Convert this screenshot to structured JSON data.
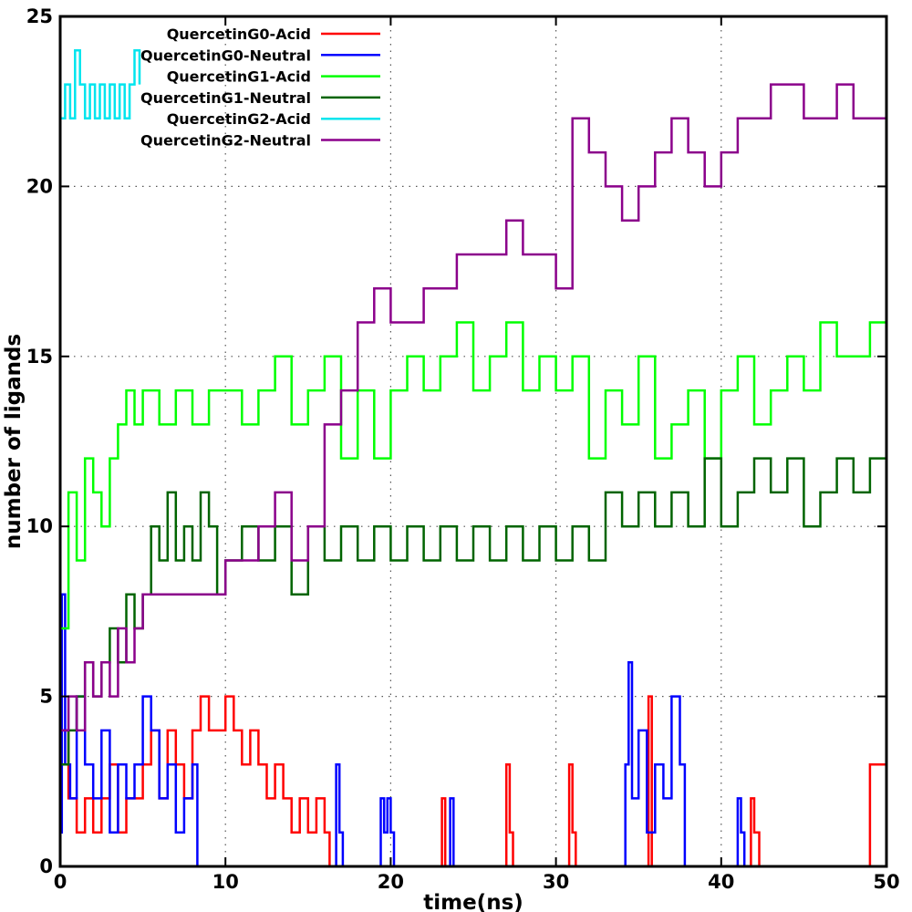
{
  "chart_data": {
    "type": "line",
    "title": "",
    "xlabel": "time(ns)",
    "ylabel": "number of ligands",
    "xlim": [
      0,
      50
    ],
    "ylim": [
      0,
      25
    ],
    "xticks": [
      0,
      10,
      20,
      30,
      40,
      50
    ],
    "yticks": [
      0,
      5,
      10,
      15,
      20,
      25
    ],
    "grid": true,
    "legend_position": "top-left",
    "series": [
      {
        "name": "QuercetinG0-Acid",
        "color": "#ff0000",
        "points": [
          [
            0,
            4
          ],
          [
            0.5,
            2
          ],
          [
            1,
            1
          ],
          [
            1.5,
            2
          ],
          [
            2,
            1
          ],
          [
            2.5,
            2
          ],
          [
            3,
            3
          ],
          [
            3.5,
            1
          ],
          [
            4,
            2
          ],
          [
            4.5,
            2
          ],
          [
            5,
            3
          ],
          [
            5.5,
            4
          ],
          [
            6,
            2
          ],
          [
            6.5,
            4
          ],
          [
            7,
            3
          ],
          [
            7.5,
            2
          ],
          [
            8,
            4
          ],
          [
            8.5,
            5
          ],
          [
            9,
            4
          ],
          [
            9.5,
            4
          ],
          [
            10,
            5
          ],
          [
            10.5,
            4
          ],
          [
            11,
            3
          ],
          [
            11.5,
            4
          ],
          [
            12,
            3
          ],
          [
            12.5,
            2
          ],
          [
            13,
            3
          ],
          [
            13.5,
            2
          ],
          [
            14,
            1
          ],
          [
            14.5,
            2
          ],
          [
            15,
            1
          ],
          [
            15.5,
            2
          ],
          [
            16,
            1
          ],
          [
            16.3,
            0
          ],
          [
            22.9,
            0
          ],
          [
            23.1,
            2
          ],
          [
            23.3,
            0
          ],
          [
            26.8,
            0
          ],
          [
            27,
            3
          ],
          [
            27.2,
            1
          ],
          [
            27.4,
            0
          ],
          [
            30.6,
            0
          ],
          [
            30.8,
            3
          ],
          [
            31,
            1
          ],
          [
            31.2,
            0
          ],
          [
            35.4,
            0
          ],
          [
            35.6,
            5
          ],
          [
            35.8,
            0
          ],
          [
            41.5,
            0
          ],
          [
            41.8,
            2
          ],
          [
            42,
            1
          ],
          [
            42.3,
            0
          ],
          [
            49,
            0
          ],
          [
            49,
            3
          ],
          [
            50,
            3
          ]
        ]
      },
      {
        "name": "QuercetinG0-Neutral",
        "color": "#0000ff",
        "points": [
          [
            0,
            1
          ],
          [
            0.1,
            8
          ],
          [
            0.3,
            3
          ],
          [
            0.6,
            2
          ],
          [
            1,
            5
          ],
          [
            1.5,
            3
          ],
          [
            2,
            2
          ],
          [
            2.5,
            4
          ],
          [
            3,
            1
          ],
          [
            3.5,
            3
          ],
          [
            4,
            2
          ],
          [
            4.5,
            3
          ],
          [
            5,
            5
          ],
          [
            5.5,
            4
          ],
          [
            6,
            2
          ],
          [
            6.5,
            3
          ],
          [
            7,
            1
          ],
          [
            7.5,
            2
          ],
          [
            8,
            3
          ],
          [
            8.3,
            0
          ],
          [
            16.5,
            0
          ],
          [
            16.7,
            3
          ],
          [
            16.9,
            1
          ],
          [
            17.1,
            0
          ],
          [
            19.2,
            0
          ],
          [
            19.4,
            2
          ],
          [
            19.6,
            1
          ],
          [
            19.8,
            2
          ],
          [
            20,
            1
          ],
          [
            20.2,
            0
          ],
          [
            23.4,
            0
          ],
          [
            23.6,
            2
          ],
          [
            23.8,
            0
          ],
          [
            34,
            0
          ],
          [
            34.2,
            3
          ],
          [
            34.4,
            6
          ],
          [
            34.6,
            2
          ],
          [
            35,
            4
          ],
          [
            35.5,
            1
          ],
          [
            36,
            3
          ],
          [
            36.5,
            2
          ],
          [
            37,
            5
          ],
          [
            37.5,
            3
          ],
          [
            37.8,
            0
          ],
          [
            40.8,
            0
          ],
          [
            41,
            2
          ],
          [
            41.2,
            1
          ],
          [
            41.4,
            0
          ],
          [
            50,
            0
          ]
        ]
      },
      {
        "name": "QuercetinG1-Acid",
        "color": "#00ff00",
        "points": [
          [
            0,
            7
          ],
          [
            0.5,
            11
          ],
          [
            1,
            9
          ],
          [
            1.5,
            12
          ],
          [
            2,
            11
          ],
          [
            2.5,
            10
          ],
          [
            3,
            12
          ],
          [
            3.5,
            13
          ],
          [
            4,
            14
          ],
          [
            4.5,
            13
          ],
          [
            5,
            14
          ],
          [
            6,
            13
          ],
          [
            7,
            14
          ],
          [
            8,
            13
          ],
          [
            9,
            14
          ],
          [
            10,
            14
          ],
          [
            11,
            13
          ],
          [
            12,
            14
          ],
          [
            13,
            15
          ],
          [
            14,
            13
          ],
          [
            15,
            14
          ],
          [
            16,
            15
          ],
          [
            17,
            12
          ],
          [
            18,
            14
          ],
          [
            19,
            12
          ],
          [
            20,
            14
          ],
          [
            21,
            15
          ],
          [
            22,
            14
          ],
          [
            23,
            15
          ],
          [
            24,
            16
          ],
          [
            25,
            14
          ],
          [
            26,
            15
          ],
          [
            27,
            16
          ],
          [
            28,
            14
          ],
          [
            29,
            15
          ],
          [
            30,
            14
          ],
          [
            31,
            15
          ],
          [
            32,
            12
          ],
          [
            33,
            14
          ],
          [
            34,
            13
          ],
          [
            35,
            15
          ],
          [
            36,
            12
          ],
          [
            37,
            13
          ],
          [
            38,
            14
          ],
          [
            39,
            12
          ],
          [
            40,
            14
          ],
          [
            41,
            15
          ],
          [
            42,
            13
          ],
          [
            43,
            14
          ],
          [
            44,
            15
          ],
          [
            45,
            14
          ],
          [
            46,
            16
          ],
          [
            47,
            15
          ],
          [
            48,
            15
          ],
          [
            49,
            16
          ],
          [
            50,
            17
          ]
        ]
      },
      {
        "name": "QuercetinG1-Neutral",
        "color": "#006400",
        "points": [
          [
            0,
            3
          ],
          [
            0.5,
            4
          ],
          [
            1,
            5
          ],
          [
            1.5,
            6
          ],
          [
            2,
            5
          ],
          [
            2.5,
            6
          ],
          [
            3,
            7
          ],
          [
            3.5,
            6
          ],
          [
            4,
            8
          ],
          [
            4.5,
            7
          ],
          [
            5,
            8
          ],
          [
            5.5,
            10
          ],
          [
            6,
            9
          ],
          [
            6.5,
            11
          ],
          [
            7,
            9
          ],
          [
            7.5,
            10
          ],
          [
            8,
            9
          ],
          [
            8.5,
            11
          ],
          [
            9,
            10
          ],
          [
            9.5,
            8
          ],
          [
            10,
            9
          ],
          [
            11,
            10
          ],
          [
            12,
            9
          ],
          [
            13,
            10
          ],
          [
            14,
            8
          ],
          [
            15,
            10
          ],
          [
            16,
            9
          ],
          [
            17,
            10
          ],
          [
            18,
            9
          ],
          [
            19,
            10
          ],
          [
            20,
            9
          ],
          [
            21,
            10
          ],
          [
            22,
            9
          ],
          [
            23,
            10
          ],
          [
            24,
            9
          ],
          [
            25,
            10
          ],
          [
            26,
            9
          ],
          [
            27,
            10
          ],
          [
            28,
            9
          ],
          [
            29,
            10
          ],
          [
            30,
            9
          ],
          [
            31,
            10
          ],
          [
            32,
            9
          ],
          [
            33,
            11
          ],
          [
            34,
            10
          ],
          [
            35,
            11
          ],
          [
            36,
            10
          ],
          [
            37,
            11
          ],
          [
            38,
            10
          ],
          [
            39,
            12
          ],
          [
            40,
            10
          ],
          [
            41,
            11
          ],
          [
            42,
            12
          ],
          [
            43,
            11
          ],
          [
            44,
            12
          ],
          [
            45,
            10
          ],
          [
            46,
            11
          ],
          [
            47,
            12
          ],
          [
            48,
            11
          ],
          [
            49,
            12
          ],
          [
            50,
            12
          ]
        ]
      },
      {
        "name": "QuercetinG2-Acid",
        "color": "#00e5ee",
        "points": [
          [
            0,
            22
          ],
          [
            0.3,
            23
          ],
          [
            0.6,
            22
          ],
          [
            0.9,
            24
          ],
          [
            1.2,
            23
          ],
          [
            1.5,
            22
          ],
          [
            1.8,
            23
          ],
          [
            2.1,
            22
          ],
          [
            2.4,
            23
          ],
          [
            2.7,
            22
          ],
          [
            3,
            23
          ],
          [
            3.3,
            22
          ],
          [
            3.6,
            23
          ],
          [
            3.9,
            22
          ],
          [
            4.2,
            23
          ],
          [
            4.5,
            24
          ],
          [
            4.8,
            23
          ]
        ]
      },
      {
        "name": "QuercetinG2-Neutral",
        "color": "#8b008b",
        "points": [
          [
            0,
            4
          ],
          [
            0.5,
            5
          ],
          [
            1,
            4
          ],
          [
            1.5,
            6
          ],
          [
            2,
            5
          ],
          [
            2.5,
            6
          ],
          [
            3,
            5
          ],
          [
            3.5,
            7
          ],
          [
            4,
            6
          ],
          [
            4.5,
            7
          ],
          [
            5,
            8
          ],
          [
            6,
            8
          ],
          [
            7,
            8
          ],
          [
            8,
            8
          ],
          [
            9,
            8
          ],
          [
            10,
            9
          ],
          [
            11,
            9
          ],
          [
            12,
            10
          ],
          [
            13,
            11
          ],
          [
            14,
            9
          ],
          [
            15,
            10
          ],
          [
            16,
            13
          ],
          [
            17,
            14
          ],
          [
            18,
            16
          ],
          [
            19,
            17
          ],
          [
            20,
            16
          ],
          [
            21,
            16
          ],
          [
            22,
            17
          ],
          [
            23,
            17
          ],
          [
            24,
            18
          ],
          [
            25,
            18
          ],
          [
            26,
            18
          ],
          [
            27,
            19
          ],
          [
            28,
            18
          ],
          [
            29,
            18
          ],
          [
            30,
            17
          ],
          [
            31,
            22
          ],
          [
            32,
            21
          ],
          [
            33,
            20
          ],
          [
            34,
            19
          ],
          [
            35,
            20
          ],
          [
            36,
            21
          ],
          [
            37,
            22
          ],
          [
            38,
            21
          ],
          [
            39,
            20
          ],
          [
            40,
            21
          ],
          [
            41,
            22
          ],
          [
            42,
            22
          ],
          [
            43,
            23
          ],
          [
            44,
            23
          ],
          [
            45,
            22
          ],
          [
            46,
            22
          ],
          [
            47,
            23
          ],
          [
            48,
            22
          ],
          [
            49,
            22
          ],
          [
            50,
            22
          ]
        ]
      }
    ]
  }
}
